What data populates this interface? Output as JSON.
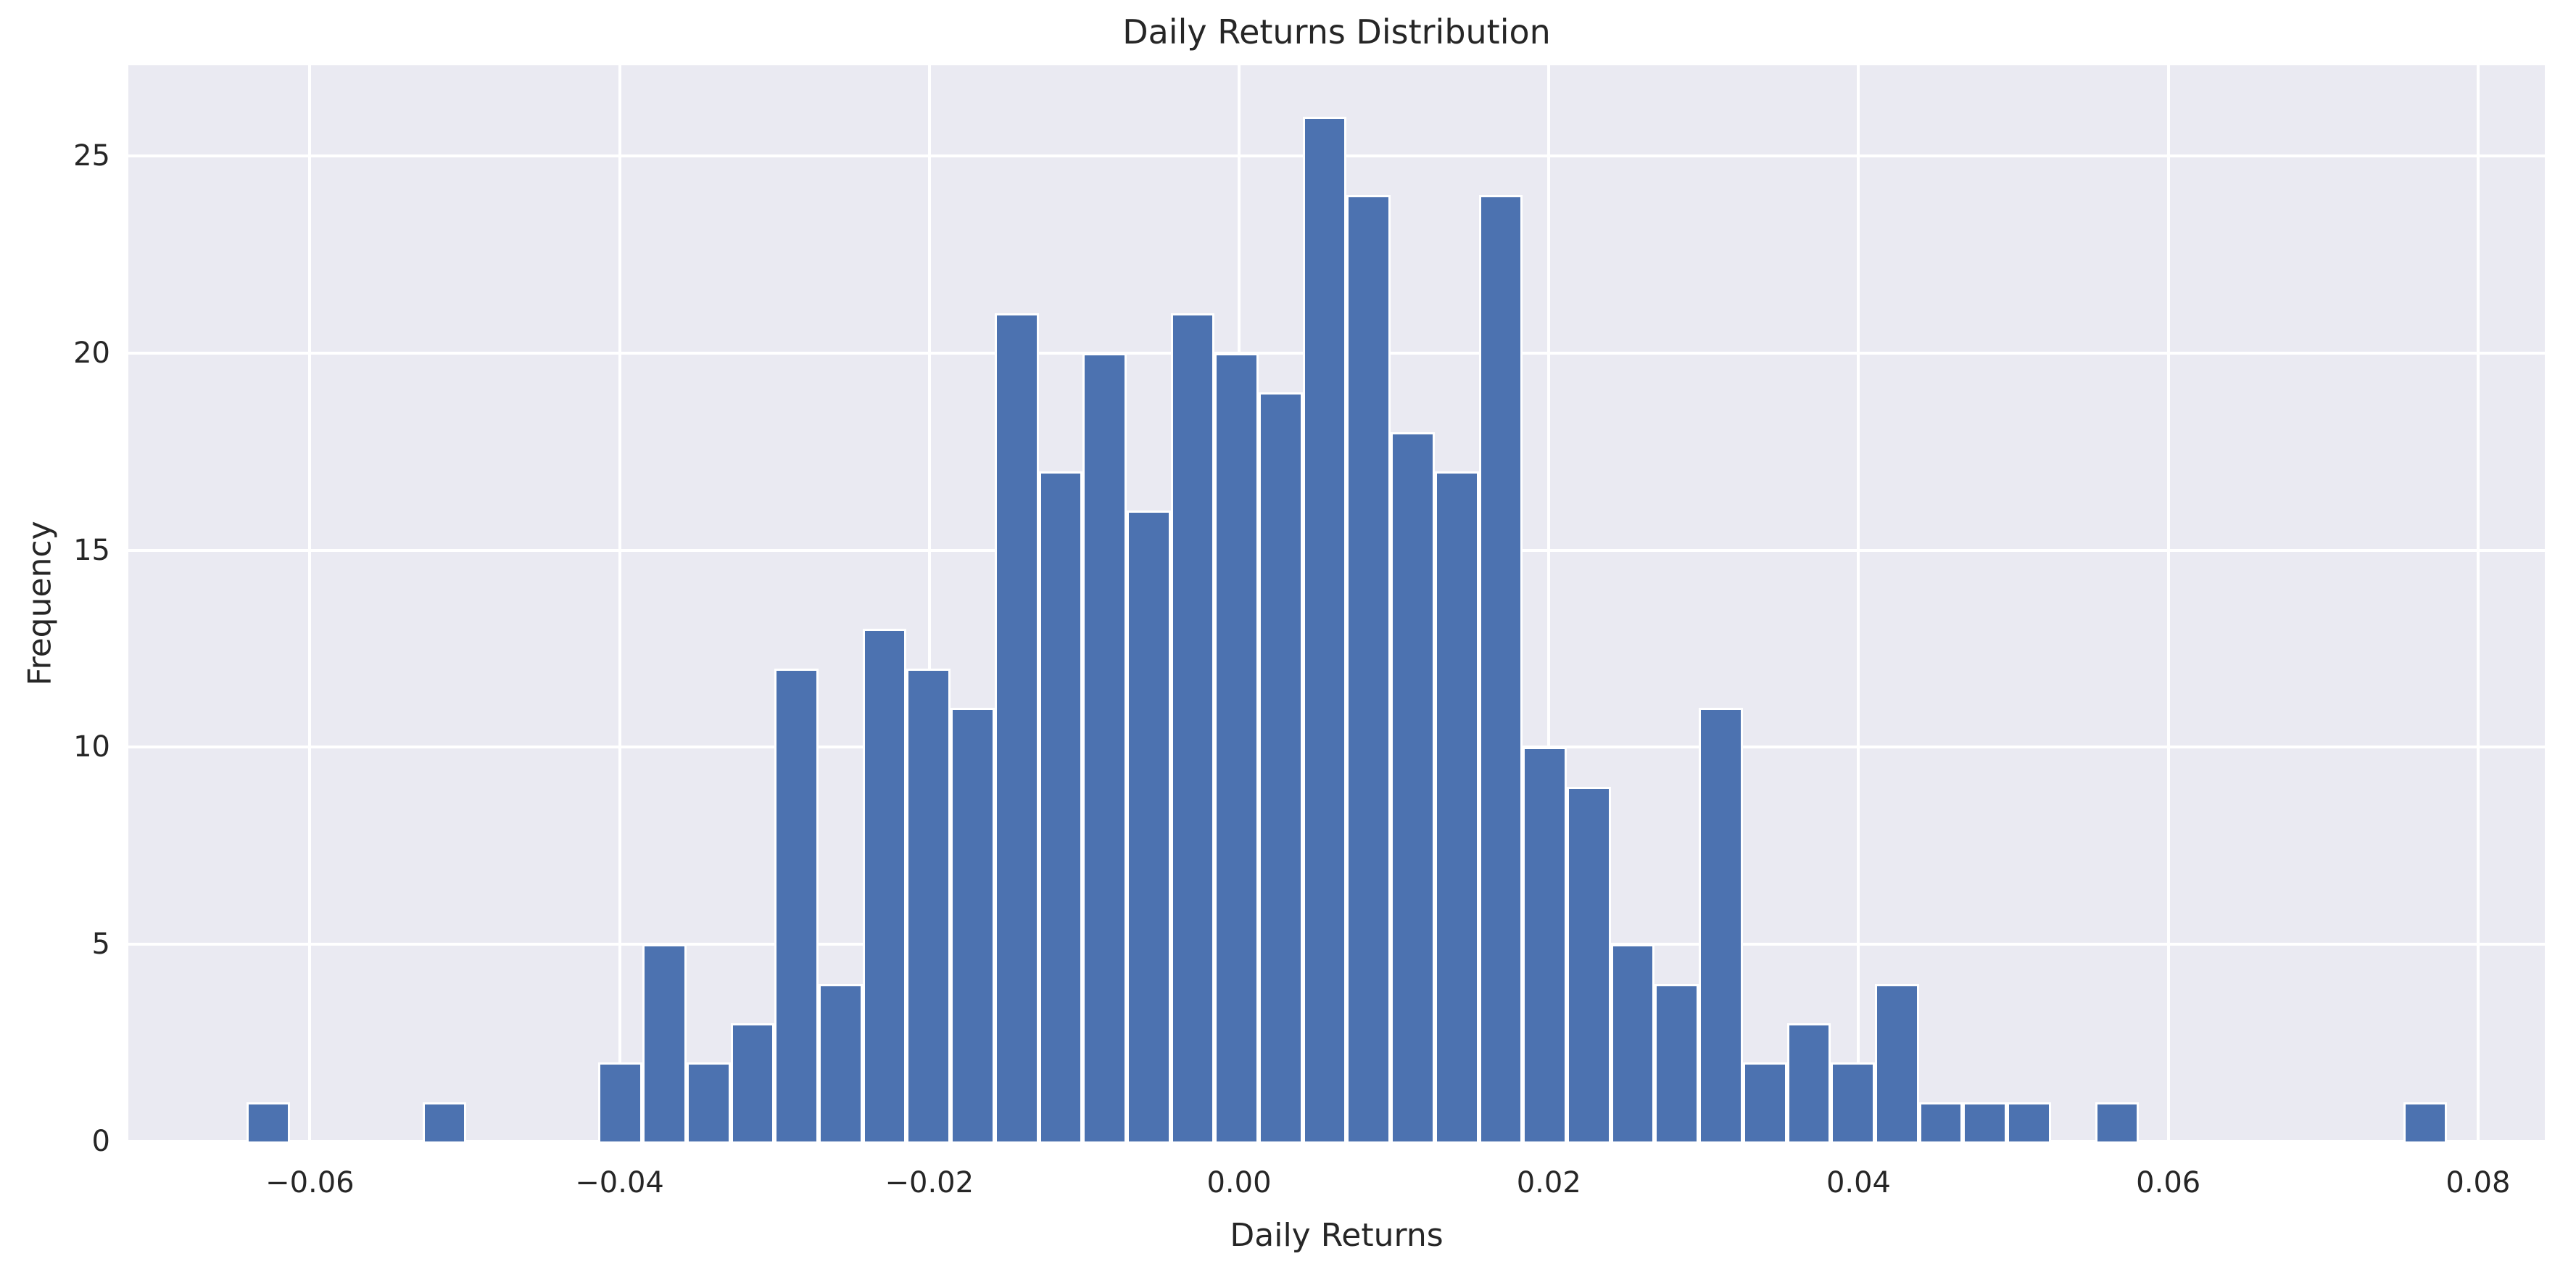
{
  "figure": {
    "title": "Daily Returns Distribution",
    "xlabel": "Daily Returns",
    "ylabel": "Frequency"
  },
  "colors": {
    "bar_fill": "#4C72B0",
    "bar_edge": "#FFFFFF",
    "plot_background": "#EAEAF2",
    "gridline": "#FFFFFF",
    "text": "#262626"
  },
  "chart_data": {
    "type": "bar",
    "subtype": "histogram",
    "title": "Daily Returns Distribution",
    "xlabel": "Daily Returns",
    "ylabel": "Frequency",
    "grid": true,
    "legend": false,
    "bin_start": -0.0641,
    "bin_width": 0.002842,
    "counts": [
      1,
      0,
      0,
      0,
      1,
      0,
      0,
      0,
      2,
      5,
      2,
      3,
      12,
      4,
      13,
      12,
      11,
      21,
      17,
      20,
      16,
      21,
      20,
      19,
      26,
      24,
      18,
      17,
      24,
      10,
      9,
      5,
      4,
      11,
      2,
      3,
      2,
      4,
      1,
      1,
      1,
      0,
      1,
      0,
      0,
      0,
      0,
      0,
      0,
      1
    ],
    "total_observations": 364,
    "xlim": [
      -0.07172,
      0.08431
    ],
    "ylim": [
      0,
      27.3
    ],
    "x_ticks": [
      {
        "value": -0.06,
        "label": "−0.06"
      },
      {
        "value": -0.04,
        "label": "−0.04"
      },
      {
        "value": -0.02,
        "label": "−0.02"
      },
      {
        "value": 0.0,
        "label": "0.00"
      },
      {
        "value": 0.02,
        "label": "0.02"
      },
      {
        "value": 0.04,
        "label": "0.04"
      },
      {
        "value": 0.06,
        "label": "0.06"
      },
      {
        "value": 0.08,
        "label": "0.08"
      }
    ],
    "y_ticks": [
      {
        "value": 0,
        "label": "0"
      },
      {
        "value": 5,
        "label": "5"
      },
      {
        "value": 10,
        "label": "10"
      },
      {
        "value": 15,
        "label": "15"
      },
      {
        "value": 20,
        "label": "20"
      },
      {
        "value": 25,
        "label": "25"
      }
    ]
  }
}
